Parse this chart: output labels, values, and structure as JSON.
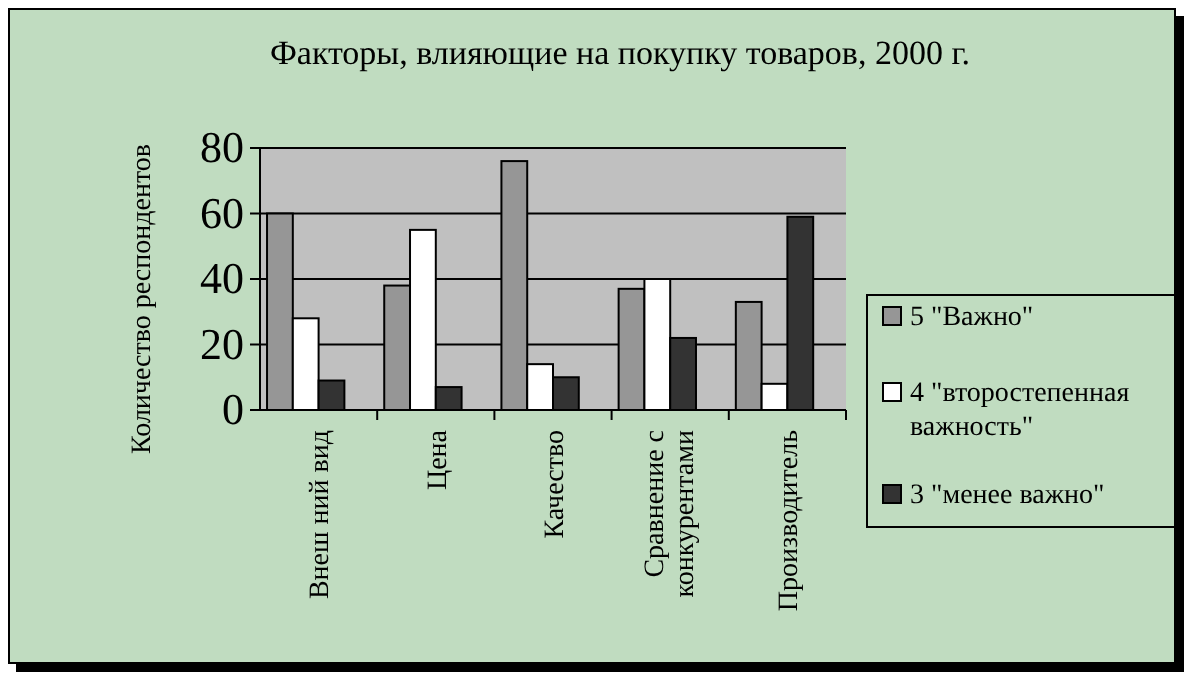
{
  "chart_data": {
    "type": "bar",
    "title": "Факторы, влияющие на покупку товаров, 2000 г.",
    "ylabel": "Количество респондентов",
    "categories": [
      "Внеш ний вид",
      "Цена",
      "Качество",
      "Сравнение с конкурентами",
      "Производитель"
    ],
    "series": [
      {
        "name": "5 \"Важно\"",
        "color": "#969696",
        "values": [
          60,
          38,
          76,
          37,
          33
        ]
      },
      {
        "name": "4 \"второстепенная важность\"",
        "color": "#ffffff",
        "values": [
          28,
          55,
          14,
          40,
          8
        ]
      },
      {
        "name": "3 \"менее важно\"",
        "color": "#333333",
        "values": [
          9,
          7,
          10,
          22,
          59
        ]
      }
    ],
    "ylim": [
      0,
      80
    ],
    "yticks": [
      0,
      20,
      40,
      60,
      80
    ],
    "grid": "y",
    "legend": "right"
  }
}
